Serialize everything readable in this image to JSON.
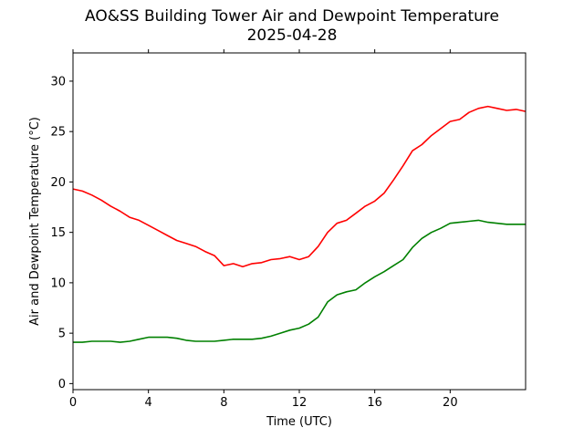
{
  "chart_data": {
    "type": "line",
    "title": "AO&SS Building Tower Air and Dewpoint Temperature",
    "subtitle": "2025-04-28",
    "xlabel": "Time (UTC)",
    "ylabel": "Air and Dewpoint Temperature (°C)",
    "xlim": [
      0,
      24
    ],
    "ylim": [
      -0.6,
      32.8
    ],
    "xticks": [
      0,
      4,
      8,
      12,
      16,
      20
    ],
    "yticks": [
      0,
      5,
      10,
      15,
      20,
      25,
      30
    ],
    "grid": false,
    "legend": "none",
    "x": [
      0,
      0.5,
      1,
      1.5,
      2,
      2.5,
      3,
      3.5,
      4,
      4.5,
      5,
      5.5,
      6,
      6.5,
      7,
      7.5,
      8,
      8.5,
      9,
      9.5,
      10,
      10.5,
      11,
      11.5,
      12,
      12.5,
      13,
      13.5,
      14,
      14.5,
      15,
      15.5,
      16,
      16.5,
      17,
      17.5,
      18,
      18.5,
      19,
      19.5,
      20,
      20.5,
      21,
      21.5,
      22,
      22.5,
      23,
      23.5,
      24
    ],
    "series": [
      {
        "color": "#ff0000",
        "values": [
          19.3,
          19.1,
          18.7,
          18.2,
          17.6,
          17.1,
          16.5,
          16.2,
          15.7,
          15.2,
          14.7,
          14.2,
          13.9,
          13.6,
          13.1,
          12.7,
          11.7,
          11.9,
          11.6,
          11.9,
          12.0,
          12.3,
          12.4,
          12.6,
          12.3,
          12.6,
          13.6,
          15.0,
          15.9,
          16.2,
          16.9,
          17.6,
          18.1,
          18.9,
          20.2,
          21.6,
          23.1,
          23.7,
          24.6,
          25.3,
          26.0,
          26.2,
          26.9,
          27.3,
          27.5,
          27.3,
          27.1,
          27.2,
          27.0
        ]
      },
      {
        "color": "#008000",
        "values": [
          4.1,
          4.1,
          4.2,
          4.2,
          4.2,
          4.1,
          4.2,
          4.4,
          4.6,
          4.6,
          4.6,
          4.5,
          4.3,
          4.2,
          4.2,
          4.2,
          4.3,
          4.4,
          4.4,
          4.4,
          4.5,
          4.7,
          5.0,
          5.3,
          5.5,
          5.9,
          6.6,
          8.1,
          8.8,
          9.1,
          9.3,
          10.0,
          10.6,
          11.1,
          11.7,
          12.3,
          13.5,
          14.4,
          15.0,
          15.4,
          15.9,
          16.0,
          16.1,
          16.2,
          16.0,
          15.9,
          15.8,
          15.8,
          15.8
        ]
      }
    ]
  }
}
